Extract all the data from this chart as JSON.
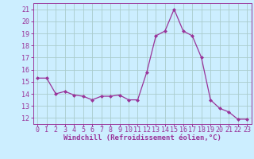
{
  "x": [
    0,
    1,
    2,
    3,
    4,
    5,
    6,
    7,
    8,
    9,
    10,
    11,
    12,
    13,
    14,
    15,
    16,
    17,
    18,
    19,
    20,
    21,
    22,
    23
  ],
  "y": [
    15.3,
    15.3,
    14.0,
    14.2,
    13.9,
    13.8,
    13.5,
    13.8,
    13.8,
    13.9,
    13.5,
    13.5,
    15.8,
    18.8,
    19.2,
    21.0,
    19.2,
    18.8,
    17.0,
    13.5,
    12.8,
    12.5,
    11.9,
    11.9
  ],
  "line_color": "#993399",
  "marker": "D",
  "marker_size": 2.0,
  "bg_color": "#cceeff",
  "grid_color": "#aacccc",
  "xlabel": "Windchill (Refroidissement éolien,°C)",
  "xlabel_color": "#993399",
  "xlabel_fontsize": 6.5,
  "tick_color": "#993399",
  "tick_fontsize": 6.0,
  "ylim": [
    11.5,
    21.5
  ],
  "yticks": [
    12,
    13,
    14,
    15,
    16,
    17,
    18,
    19,
    20,
    21
  ],
  "xlim": [
    -0.5,
    23.5
  ],
  "xticks": [
    0,
    1,
    2,
    3,
    4,
    5,
    6,
    7,
    8,
    9,
    10,
    11,
    12,
    13,
    14,
    15,
    16,
    17,
    18,
    19,
    20,
    21,
    22,
    23
  ]
}
